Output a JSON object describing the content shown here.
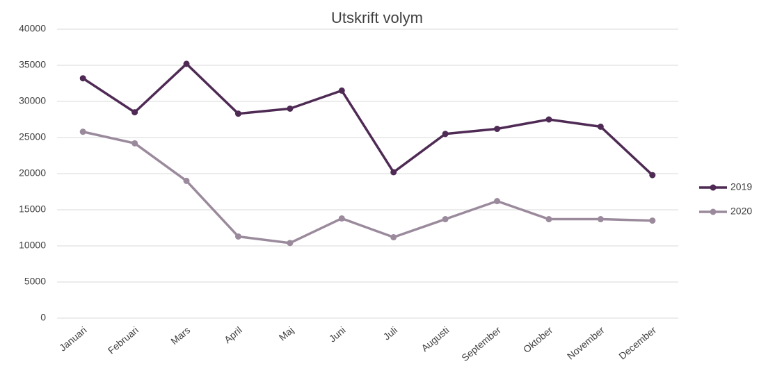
{
  "chart_data": {
    "type": "line",
    "title": "Utskrift volym",
    "categories": [
      "Januari",
      "Februari",
      "Mars",
      "April",
      "Maj",
      "Juni",
      "Juli",
      "Augusti",
      "September",
      "Oktober",
      "November",
      "December"
    ],
    "series": [
      {
        "name": "2019",
        "color": "#4e2a54",
        "values": [
          33200,
          28500,
          35200,
          28300,
          29000,
          31500,
          20200,
          25500,
          26200,
          27500,
          26500,
          19800
        ]
      },
      {
        "name": "2020",
        "color": "#9a8a9c",
        "values": [
          25800,
          24200,
          19000,
          11300,
          10400,
          13800,
          11200,
          13700,
          16200,
          13700,
          13700,
          13500
        ]
      }
    ],
    "ylim": [
      0,
      40000
    ],
    "yticks": [
      0,
      5000,
      10000,
      15000,
      20000,
      25000,
      30000,
      35000,
      40000
    ],
    "grid": true,
    "legend": "right"
  }
}
